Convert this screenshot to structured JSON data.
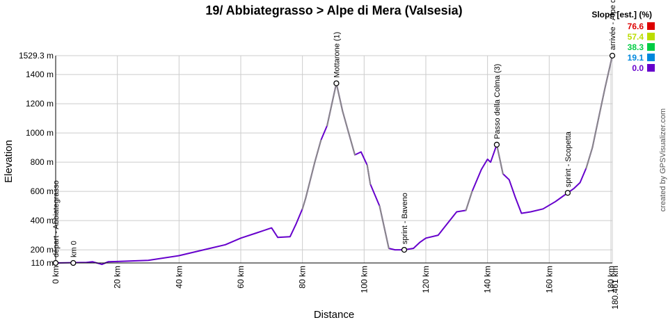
{
  "chart_data": {
    "type": "line",
    "title": "19/ Abbiategrasso > Alpe di Mera (Valsesia)",
    "xlabel": "Distance",
    "ylabel": "Elevation",
    "xlim": [
      0,
      180.461
    ],
    "ylim": [
      110,
      1529.3
    ],
    "x_ticks": [
      {
        "value": 0,
        "label": "0 km"
      },
      {
        "value": 20,
        "label": "20 km"
      },
      {
        "value": 40,
        "label": "40 km"
      },
      {
        "value": 60,
        "label": "60 km"
      },
      {
        "value": 80,
        "label": "80 km"
      },
      {
        "value": 100,
        "label": "100 km"
      },
      {
        "value": 120,
        "label": "120 km"
      },
      {
        "value": 140,
        "label": "140 km"
      },
      {
        "value": 160,
        "label": "160 km"
      },
      {
        "value": 180,
        "label": "180 km"
      },
      {
        "value": 180.461,
        "label": "180.461 km"
      }
    ],
    "y_ticks": [
      {
        "value": 110,
        "label": "110 m"
      },
      {
        "value": 200,
        "label": "200 m"
      },
      {
        "value": 400,
        "label": "400 m"
      },
      {
        "value": 600,
        "label": "600 m"
      },
      {
        "value": 800,
        "label": "800 m"
      },
      {
        "value": 1000,
        "label": "1000 m"
      },
      {
        "value": 1200,
        "label": "1200 m"
      },
      {
        "value": 1400,
        "label": "1400 m"
      },
      {
        "value": 1529.3,
        "label": "1529.3 m"
      }
    ],
    "grid": true,
    "legend_placement": "top-right",
    "legend": {
      "title": "Slope [est.] (%)",
      "items": [
        {
          "label": "76.6",
          "color": "#dd0000"
        },
        {
          "label": "57.4",
          "color": "#bbdd00"
        },
        {
          "label": "38.3",
          "color": "#00cc44"
        },
        {
          "label": "19.1",
          "color": "#0088dd"
        },
        {
          "label": "0.0",
          "color": "#6600cc"
        }
      ]
    },
    "series": [
      {
        "x": [
          0,
          5,
          10,
          12,
          15,
          17,
          20,
          30,
          40,
          50,
          55,
          60,
          65,
          70,
          72,
          76,
          78,
          80,
          81,
          84,
          86,
          88,
          91,
          93,
          95,
          97,
          99,
          101,
          102,
          105,
          108,
          110,
          113,
          116,
          118,
          120,
          124,
          127,
          130,
          133,
          135,
          138,
          140,
          141,
          143,
          145,
          147,
          149,
          151,
          154,
          158,
          162,
          164,
          166,
          168,
          170,
          172,
          174,
          176,
          178,
          180.461
        ],
        "y": [
          110,
          112,
          114,
          118,
          100,
          118,
          120,
          128,
          160,
          210,
          235,
          280,
          315,
          350,
          285,
          290,
          380,
          480,
          550,
          800,
          950,
          1050,
          1340,
          1150,
          1000,
          850,
          870,
          780,
          650,
          500,
          210,
          200,
          200,
          210,
          250,
          280,
          300,
          380,
          460,
          470,
          600,
          750,
          820,
          800,
          920,
          720,
          680,
          560,
          450,
          460,
          480,
          530,
          560,
          590,
          620,
          660,
          760,
          900,
          1100,
          1300,
          1529.3
        ],
        "color": "#6600cc",
        "secondary_color": "#888888"
      }
    ],
    "waypoints": [
      {
        "x": 0,
        "y": 110,
        "label": "départ - Abbiategrasso"
      },
      {
        "x": 5.7,
        "y": 110,
        "label": "km 0"
      },
      {
        "x": 91,
        "y": 1340,
        "label": "Mottarone (1)"
      },
      {
        "x": 113,
        "y": 200,
        "label": "sprint - Baveno"
      },
      {
        "x": 143,
        "y": 920,
        "label": "Passo della Colma (3)"
      },
      {
        "x": 166,
        "y": 590,
        "label": "sprint - Scopetta"
      },
      {
        "x": 180.461,
        "y": 1529.3,
        "label": "arrivée - Alpe di Mera"
      }
    ]
  },
  "credit": "created by GPSVisualizer.com",
  "colors": {
    "grid": "#cccccc",
    "axis": "#000000",
    "marker_fill": "#ffffff",
    "marker_stroke": "#000000"
  }
}
